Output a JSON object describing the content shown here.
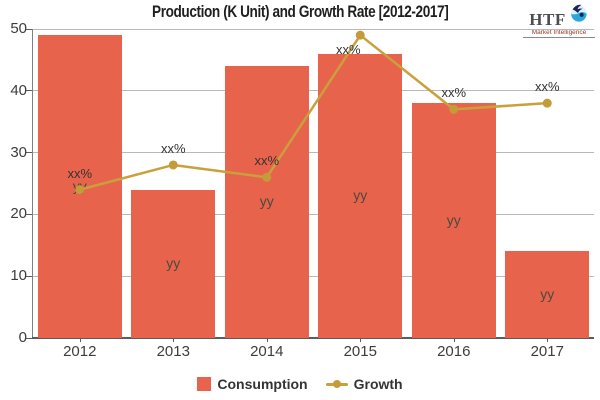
{
  "title": "Production (K Unit) and Growth Rate [2012-2017]",
  "logo": {
    "name": "HTF",
    "tagline": "Market Intelligence",
    "bird_icon_color": "#2aa6dc",
    "bird_accent_color": "#16265c"
  },
  "colors": {
    "bar": "#e8634c",
    "line": "#c9a03c",
    "point": "#c49b39",
    "grid": "#b9b9b9",
    "axis": "#5c5c5c",
    "text": "#3d3d3d"
  },
  "chart_data": {
    "type": "bar",
    "subtype": "bar+line combo",
    "title": "Production (K Unit) and Growth Rate [2012-2017]",
    "categories": [
      "2012",
      "2013",
      "2014",
      "2015",
      "2016",
      "2017"
    ],
    "series": [
      {
        "name": "Consumption",
        "type": "bar",
        "color": "#e8634c",
        "values": [
          49,
          24,
          44,
          46,
          38,
          14
        ],
        "data_labels": [
          "yy",
          "yy",
          "yy",
          "yy",
          "yy",
          "yy"
        ]
      },
      {
        "name": "Growth",
        "type": "line",
        "color": "#c9a03c",
        "values": [
          24,
          28,
          26,
          49,
          37,
          38
        ],
        "data_labels": [
          "xx%",
          "xx%",
          "xx%",
          "xx%",
          "xx%",
          "xx%"
        ]
      }
    ],
    "xlabel": "",
    "ylabel": "",
    "ylim": [
      0,
      50
    ],
    "yticks": [
      0,
      10,
      20,
      30,
      40,
      50
    ],
    "grid": "horizontal",
    "legend_position": "bottom-center"
  }
}
